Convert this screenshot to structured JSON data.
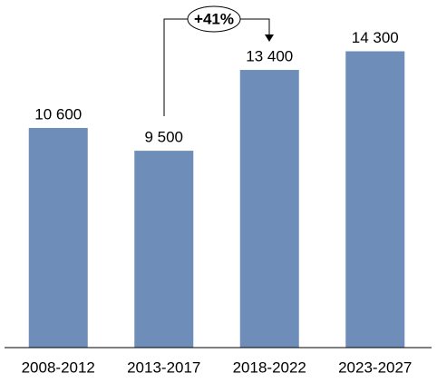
{
  "chart_data": {
    "type": "bar",
    "categories": [
      "2008-2012",
      "2013-2017",
      "2018-2022",
      "2023-2027"
    ],
    "values": [
      10600,
      9500,
      13400,
      14300
    ],
    "value_labels": [
      "10 600",
      "9 500",
      "13 400",
      "14 300"
    ],
    "color": "#6e8db9",
    "annotation": "+41%"
  }
}
